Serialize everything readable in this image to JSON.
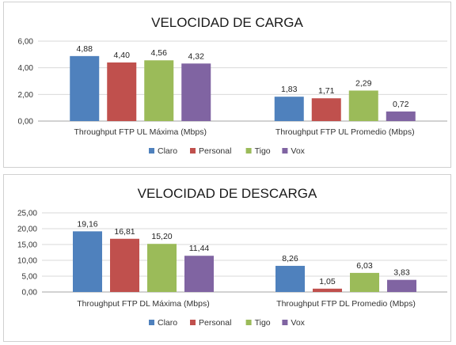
{
  "colors": {
    "Claro": "#4f81bd",
    "Personal": "#c0504d",
    "Tigo": "#9bbb59",
    "Vox": "#8064a2",
    "grid": "#d9d9d9",
    "axis": "#a6a6a6"
  },
  "chart_data": [
    {
      "type": "bar",
      "title": "VELOCIDAD DE CARGA",
      "categories": [
        "Throughput FTP UL Máxima (Mbps)",
        "Throughput FTP UL Promedio (Mbps)"
      ],
      "series": [
        {
          "name": "Claro",
          "values": [
            4.88,
            1.83
          ],
          "labels": [
            "4,88",
            "1,83"
          ]
        },
        {
          "name": "Personal",
          "values": [
            4.4,
            1.71
          ],
          "labels": [
            "4,40",
            "1,71"
          ]
        },
        {
          "name": "Tigo",
          "values": [
            4.56,
            2.29
          ],
          "labels": [
            "4,56",
            "2,29"
          ]
        },
        {
          "name": "Vox",
          "values": [
            4.32,
            0.72
          ],
          "labels": [
            "4,32",
            "0,72"
          ]
        }
      ],
      "yticks": [
        0,
        2,
        4,
        6
      ],
      "ytick_labels": [
        "0,00",
        "2,00",
        "4,00",
        "6,00"
      ],
      "ylim": [
        0,
        6
      ],
      "grid": true,
      "legend": "bottom"
    },
    {
      "type": "bar",
      "title": "VELOCIDAD DE DESCARGA",
      "categories": [
        "Throughput FTP DL Máxima (Mbps)",
        "Throughput FTP DL Promedio (Mbps)"
      ],
      "series": [
        {
          "name": "Claro",
          "values": [
            19.16,
            8.26
          ],
          "labels": [
            "19,16",
            "8,26"
          ]
        },
        {
          "name": "Personal",
          "values": [
            16.81,
            1.05
          ],
          "labels": [
            "16,81",
            "1,05"
          ]
        },
        {
          "name": "Tigo",
          "values": [
            15.2,
            6.03
          ],
          "labels": [
            "15,20",
            "6,03"
          ]
        },
        {
          "name": "Vox",
          "values": [
            11.44,
            3.83
          ],
          "labels": [
            "11,44",
            "3,83"
          ]
        }
      ],
      "yticks": [
        0,
        5,
        10,
        15,
        20,
        25
      ],
      "ytick_labels": [
        "0,00",
        "5,00",
        "10,00",
        "15,00",
        "20,00",
        "25,00"
      ],
      "ylim": [
        0,
        25
      ],
      "grid": true,
      "legend": "bottom"
    }
  ]
}
